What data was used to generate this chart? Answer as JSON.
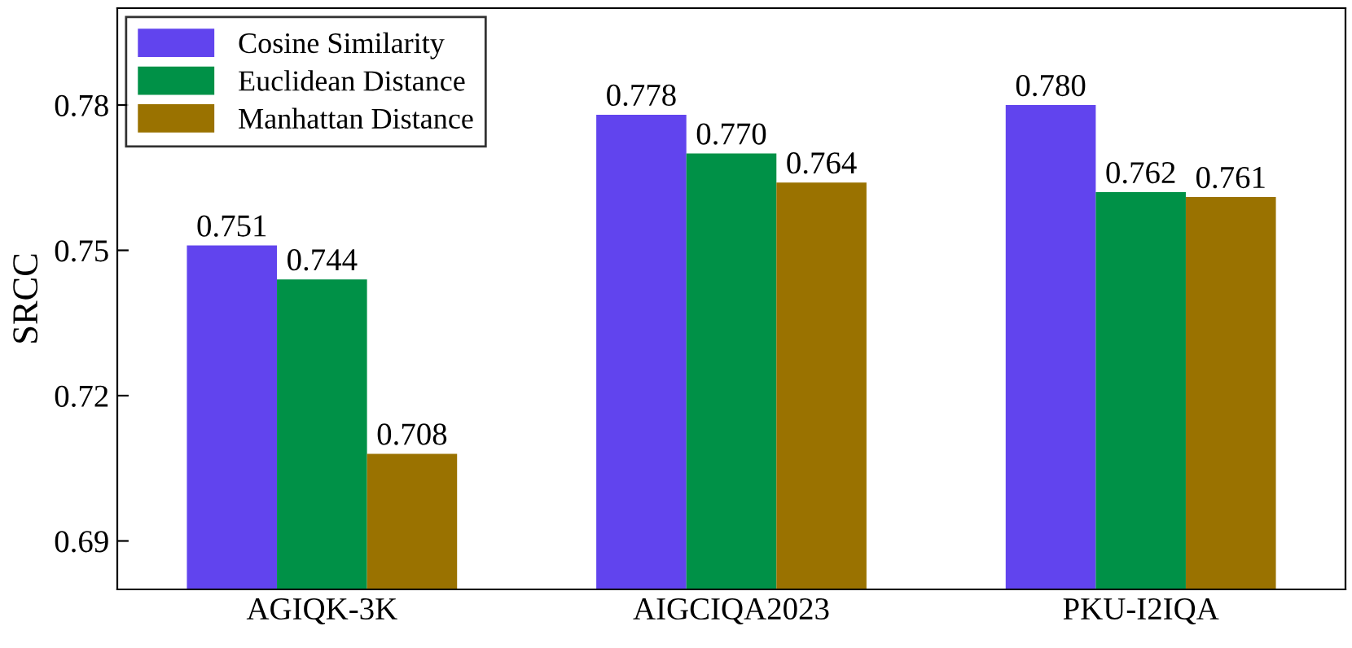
{
  "chart_data": {
    "type": "bar",
    "ylabel": "SRCC",
    "categories": [
      "AGIQK-3K",
      "AIGCIQA2023",
      "PKU-I2IQA"
    ],
    "series": [
      {
        "name": "Cosine Similarity",
        "color": "#6144ee",
        "values": [
          0.751,
          0.778,
          0.78
        ],
        "value_labels": [
          "0.751",
          "0.778",
          "0.780"
        ]
      },
      {
        "name": "Euclidean Distance",
        "color": "#009147",
        "values": [
          0.744,
          0.77,
          0.762
        ],
        "value_labels": [
          "0.744",
          "0.770",
          "0.762"
        ]
      },
      {
        "name": "Manhattan Distance",
        "color": "#9a7200",
        "values": [
          0.708,
          0.764,
          0.761
        ],
        "value_labels": [
          "0.708",
          "0.764",
          "0.761"
        ]
      }
    ],
    "ylim": [
      0.68,
      0.8
    ],
    "yticks": [
      {
        "value": 0.69,
        "label": "0.69"
      },
      {
        "value": 0.72,
        "label": "0.72"
      },
      {
        "value": 0.75,
        "label": "0.75"
      },
      {
        "value": 0.78,
        "label": "0.78"
      }
    ],
    "legend": "top left",
    "grid": false
  }
}
